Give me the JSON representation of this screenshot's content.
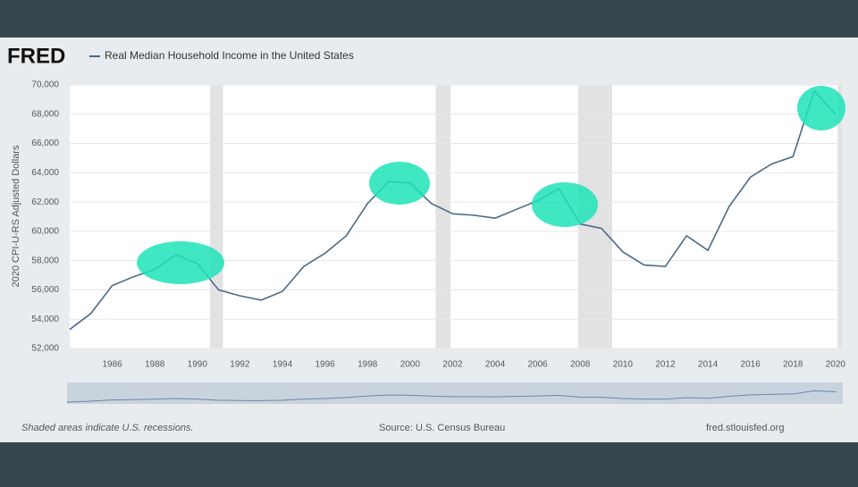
{
  "brand": "FRED",
  "chart_data": {
    "type": "line",
    "ylabel": "2020 CPI-U-RS Adjusted Dollars",
    "x": [
      1984,
      1985,
      1986,
      1987,
      1988,
      1989,
      1990,
      1991,
      1992,
      1993,
      1994,
      1995,
      1996,
      1997,
      1998,
      1999,
      2000,
      2001,
      2002,
      2003,
      2004,
      2005,
      2006,
      2007,
      2008,
      2009,
      2010,
      2011,
      2012,
      2013,
      2014,
      2015,
      2016,
      2017,
      2018,
      2019,
      2020
    ],
    "series": [
      {
        "name": "Real Median Household Income in the United States",
        "color": "#4b6a88",
        "values": [
          53300,
          54400,
          56300,
          56900,
          57400,
          58400,
          57800,
          56000,
          55600,
          55300,
          55900,
          57600,
          58500,
          59700,
          61900,
          63400,
          63300,
          61900,
          61200,
          61100,
          60900,
          61500,
          62100,
          62900,
          60500,
          60200,
          58600,
          57700,
          57600,
          59700,
          58700,
          61700,
          63700,
          64600,
          65100,
          69600,
          68000
        ]
      }
    ],
    "recessions": [
      [
        1990.6,
        1991.2
      ],
      [
        2001.2,
        2001.9
      ],
      [
        2007.9,
        2009.5
      ],
      [
        2020.1,
        2020.3
      ]
    ],
    "xlim": [
      1984,
      2020.3
    ],
    "xticks": [
      1986,
      1988,
      1990,
      1992,
      1994,
      1996,
      1998,
      2000,
      2002,
      2004,
      2006,
      2008,
      2010,
      2012,
      2014,
      2016,
      2018,
      2020
    ],
    "ylim": [
      52000,
      70000
    ],
    "yticks": [
      {
        "value": 52000,
        "label": "52,000"
      },
      {
        "value": 54000,
        "label": "54,000"
      },
      {
        "value": 56000,
        "label": "56,000"
      },
      {
        "value": 58000,
        "label": "58,000"
      },
      {
        "value": 60000,
        "label": "60,000"
      },
      {
        "value": 62000,
        "label": "62,000"
      },
      {
        "value": 64000,
        "label": "64,000"
      },
      {
        "value": 66000,
        "label": "66,000"
      },
      {
        "value": 68000,
        "label": "68,000"
      },
      {
        "value": 70000,
        "label": "70,000"
      }
    ],
    "recession_note": "Shaded areas indicate U.S. recessions.",
    "source": "Source: U.S. Census Bureau",
    "site": "fred.stlouisfed.org"
  }
}
